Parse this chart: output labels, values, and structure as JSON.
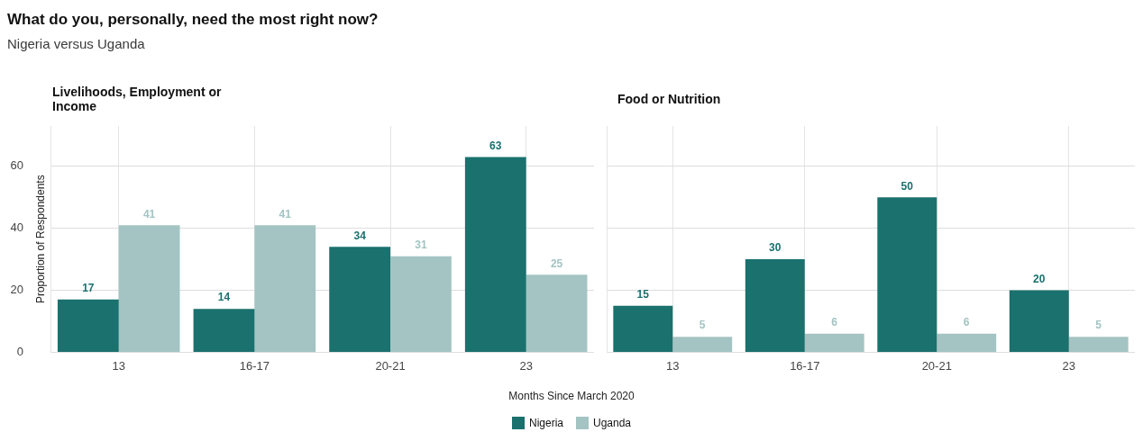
{
  "chart_data": [
    {
      "type": "other",
      "title": "What do you, personally, need the most right now?",
      "subtitle": "Nigeria versus Uganda"
    },
    {
      "type": "bar",
      "title": "Livelihoods, Employment or Income",
      "xlabel": "Months Since March 2020",
      "ylabel": "Proportion of Respondents",
      "categories": [
        "13",
        "16-17",
        "20-21",
        "23"
      ],
      "series": [
        {
          "name": "Nigeria",
          "color": "#1a716e",
          "values": [
            17,
            14,
            34,
            63
          ]
        },
        {
          "name": "Uganda",
          "color": "#a3c4c2",
          "values": [
            41,
            41,
            31,
            25
          ]
        }
      ],
      "ylim": [
        0,
        73
      ],
      "yticks": [
        0,
        20,
        40,
        60
      ],
      "grid": true,
      "data_labels": true,
      "legend": "bottom"
    },
    {
      "type": "bar",
      "title": "Food or Nutrition",
      "categories": [
        "13",
        "16-17",
        "20-21",
        "23"
      ],
      "series": [
        {
          "name": "Nigeria",
          "color": "#1a716e",
          "values": [
            15,
            30,
            50,
            20
          ]
        },
        {
          "name": "Uganda",
          "color": "#a3c4c2",
          "values": [
            5,
            6,
            6,
            5
          ]
        }
      ],
      "ylim": [
        0,
        73
      ],
      "yticks": [
        0,
        20,
        40,
        60
      ],
      "grid": true,
      "data_labels": true,
      "tick_labels": "x"
    }
  ]
}
